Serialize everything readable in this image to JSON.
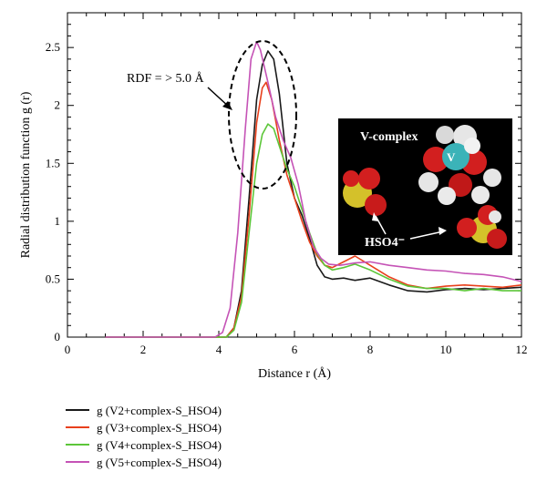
{
  "chart_data": {
    "type": "line",
    "xlabel": "Distance r (Å)",
    "ylabel": "Radial distribution function g (r)",
    "xlim": [
      0,
      12
    ],
    "ylim": [
      0,
      2.8
    ],
    "xticks": [
      "0",
      "2",
      "4",
      "6",
      "8",
      "10",
      "12"
    ],
    "yticks": [
      "0",
      "0.5",
      "1",
      "1.5",
      "2",
      "2.5"
    ],
    "grid": false,
    "legend_position": "bottom-left, below plot",
    "annotation": "RDF = > 5.0 Å",
    "inset": {
      "label_complex": "V-complex",
      "label_atom": "V",
      "label_hso4": "HSO4⁻"
    },
    "series": [
      {
        "name": "g (V2+complex-S_HSO4)",
        "color": "#1a1a1a",
        "points": [
          [
            1.0,
            0
          ],
          [
            4.2,
            0
          ],
          [
            4.4,
            0.08
          ],
          [
            4.6,
            0.4
          ],
          [
            4.8,
            1.2
          ],
          [
            5.0,
            2.05
          ],
          [
            5.15,
            2.35
          ],
          [
            5.3,
            2.47
          ],
          [
            5.45,
            2.4
          ],
          [
            5.6,
            2.1
          ],
          [
            5.8,
            1.5
          ],
          [
            6.0,
            1.2
          ],
          [
            6.2,
            1.05
          ],
          [
            6.4,
            0.85
          ],
          [
            6.6,
            0.62
          ],
          [
            6.8,
            0.52
          ],
          [
            7.0,
            0.5
          ],
          [
            7.3,
            0.51
          ],
          [
            7.6,
            0.49
          ],
          [
            8.0,
            0.51
          ],
          [
            8.5,
            0.45
          ],
          [
            9.0,
            0.4
          ],
          [
            9.5,
            0.39
          ],
          [
            10.0,
            0.41
          ],
          [
            10.5,
            0.42
          ],
          [
            11.0,
            0.41
          ],
          [
            11.5,
            0.42
          ],
          [
            12.0,
            0.43
          ]
        ]
      },
      {
        "name": "g (V3+complex-S_HSO4)",
        "color": "#e8401c",
        "points": [
          [
            1.0,
            0
          ],
          [
            4.2,
            0
          ],
          [
            4.4,
            0.08
          ],
          [
            4.6,
            0.35
          ],
          [
            4.8,
            1.05
          ],
          [
            5.0,
            1.85
          ],
          [
            5.15,
            2.15
          ],
          [
            5.25,
            2.2
          ],
          [
            5.4,
            2.05
          ],
          [
            5.6,
            1.7
          ],
          [
            5.8,
            1.4
          ],
          [
            6.0,
            1.2
          ],
          [
            6.2,
            1.0
          ],
          [
            6.4,
            0.82
          ],
          [
            6.6,
            0.7
          ],
          [
            6.8,
            0.62
          ],
          [
            7.0,
            0.6
          ],
          [
            7.3,
            0.65
          ],
          [
            7.6,
            0.7
          ],
          [
            8.0,
            0.62
          ],
          [
            8.5,
            0.52
          ],
          [
            9.0,
            0.45
          ],
          [
            9.5,
            0.42
          ],
          [
            10.0,
            0.44
          ],
          [
            10.5,
            0.45
          ],
          [
            11.0,
            0.44
          ],
          [
            11.5,
            0.43
          ],
          [
            12.0,
            0.45
          ]
        ]
      },
      {
        "name": "g (V4+complex-S_HSO4)",
        "color": "#5cc639",
        "points": [
          [
            1.0,
            0
          ],
          [
            4.2,
            0
          ],
          [
            4.4,
            0.06
          ],
          [
            4.6,
            0.3
          ],
          [
            4.8,
            0.9
          ],
          [
            5.0,
            1.5
          ],
          [
            5.15,
            1.75
          ],
          [
            5.3,
            1.84
          ],
          [
            5.45,
            1.8
          ],
          [
            5.6,
            1.65
          ],
          [
            5.8,
            1.45
          ],
          [
            6.0,
            1.3
          ],
          [
            6.2,
            1.1
          ],
          [
            6.4,
            0.9
          ],
          [
            6.6,
            0.72
          ],
          [
            6.8,
            0.62
          ],
          [
            7.0,
            0.58
          ],
          [
            7.3,
            0.6
          ],
          [
            7.6,
            0.63
          ],
          [
            8.0,
            0.58
          ],
          [
            8.5,
            0.5
          ],
          [
            9.0,
            0.44
          ],
          [
            9.5,
            0.42
          ],
          [
            10.0,
            0.42
          ],
          [
            10.5,
            0.4
          ],
          [
            11.0,
            0.42
          ],
          [
            11.5,
            0.4
          ],
          [
            12.0,
            0.4
          ]
        ]
      },
      {
        "name": "g (V5+complex-S_HSO4)",
        "color": "#c553b6",
        "points": [
          [
            1.0,
            0
          ],
          [
            3.9,
            0
          ],
          [
            4.1,
            0.04
          ],
          [
            4.3,
            0.25
          ],
          [
            4.5,
            0.9
          ],
          [
            4.7,
            1.8
          ],
          [
            4.85,
            2.4
          ],
          [
            5.0,
            2.55
          ],
          [
            5.1,
            2.48
          ],
          [
            5.3,
            2.2
          ],
          [
            5.5,
            1.9
          ],
          [
            5.7,
            1.7
          ],
          [
            5.9,
            1.55
          ],
          [
            6.1,
            1.32
          ],
          [
            6.3,
            1.0
          ],
          [
            6.5,
            0.78
          ],
          [
            6.7,
            0.68
          ],
          [
            6.9,
            0.63
          ],
          [
            7.2,
            0.62
          ],
          [
            7.6,
            0.64
          ],
          [
            8.0,
            0.65
          ],
          [
            8.5,
            0.62
          ],
          [
            9.0,
            0.6
          ],
          [
            9.5,
            0.58
          ],
          [
            10.0,
            0.57
          ],
          [
            10.5,
            0.55
          ],
          [
            11.0,
            0.54
          ],
          [
            11.5,
            0.52
          ],
          [
            12.0,
            0.48
          ]
        ]
      }
    ]
  }
}
